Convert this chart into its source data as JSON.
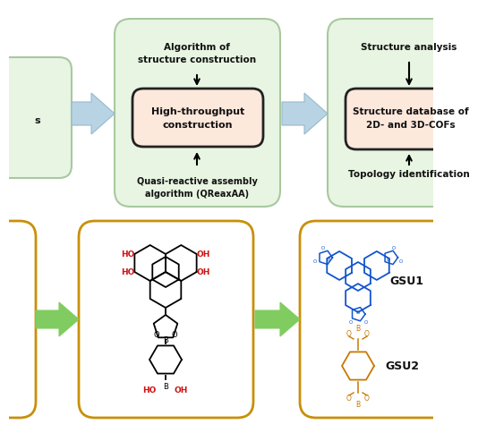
{
  "bg_color": "#ffffff",
  "green_box_color": "#e8f5e2",
  "green_box_edge": "#a8c8a0",
  "salmon_box_color": "#fde8dc",
  "salmon_box_edge": "#222222",
  "arrow_blue_face": "#b8d4e4",
  "arrow_blue_edge": "#98b8cc",
  "green_arrow_color": "#80cc60",
  "gold_box_edge": "#c8900a",
  "text_black": "#111111",
  "text_red": "#cc1111",
  "text_blue": "#1155cc",
  "text_orange": "#c87800",
  "box1_title_line1": "Algorithm of",
  "box1_title_line2": "structure construction",
  "box1_inner_line1": "High-throughput",
  "box1_inner_line2": "construction",
  "box1_bottom_line1": "Quasi-reactive assembly",
  "box1_bottom_line2": "algorithm (QReaxAA)",
  "box2_title": "Structure analysis",
  "box2_inner_line1": "Structure database of",
  "box2_inner_line2": "2D- and 3D-COFs",
  "box2_bottom": "Topology identification",
  "gsu1_label": "GSU1",
  "gsu2_label": "GSU2"
}
